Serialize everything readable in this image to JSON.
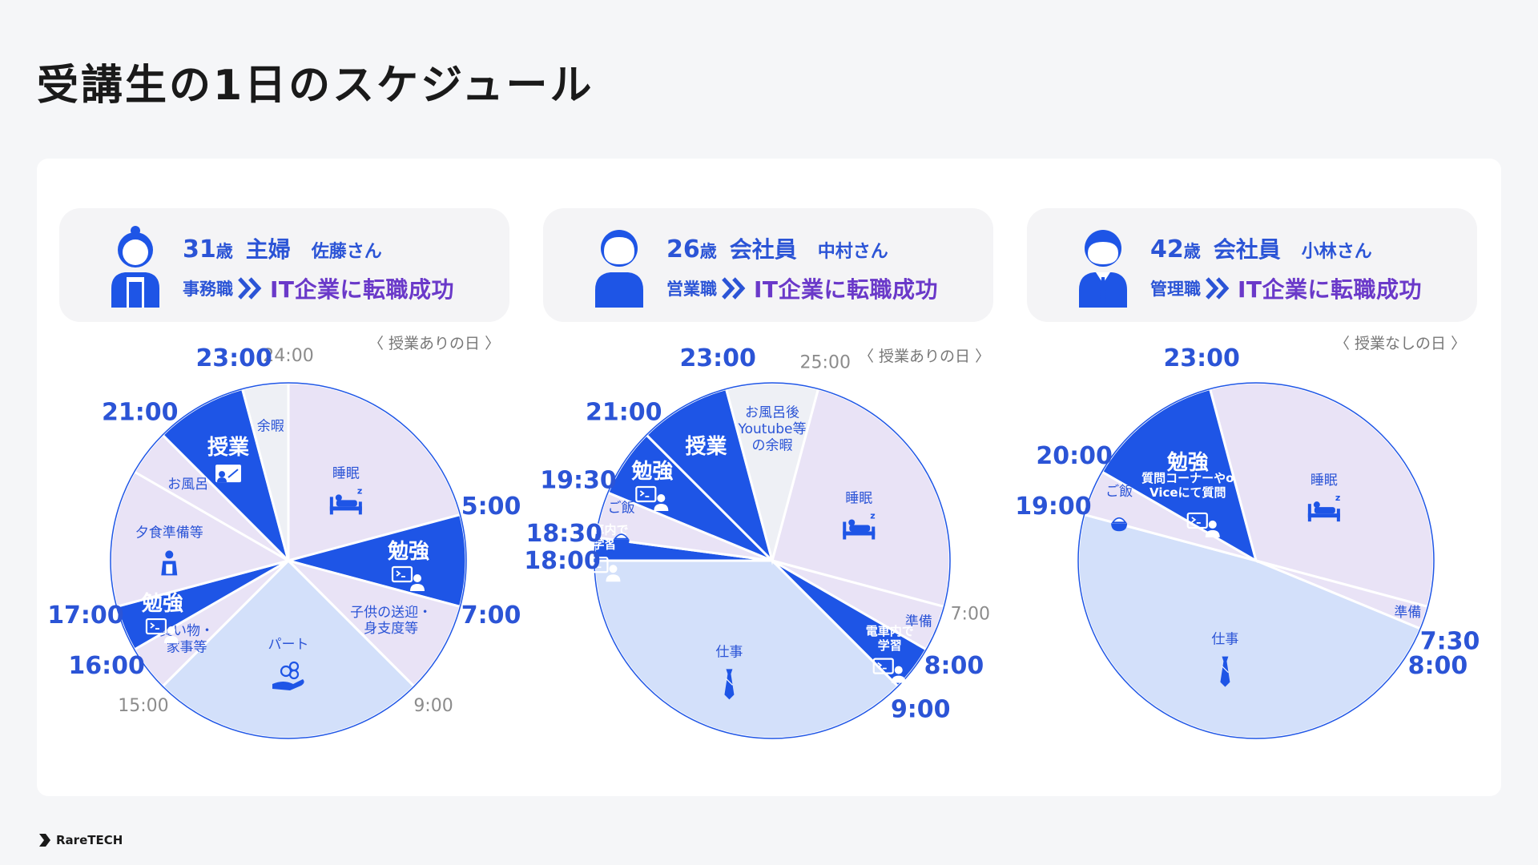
{
  "page": {
    "title": "受講生の1日のスケジュール"
  },
  "footer": {
    "brand": "RareTECH"
  },
  "colors": {
    "blue": "#1e55e6",
    "lavender": "#e9e3f6",
    "lightblue": "#d3e0fa",
    "gray": "#eef0f5",
    "purple": "#6a39c9"
  },
  "profiles": [
    {
      "age": "31",
      "sai": "歳",
      "role": "主婦",
      "name": "佐藤さん",
      "prev_job": "事務職",
      "result": "IT企業に転職成功",
      "day_type": "〈 授業ありの日 〉"
    },
    {
      "age": "26",
      "sai": "歳",
      "role": "会社員",
      "name": "中村さん",
      "prev_job": "営業職",
      "result": "IT企業に転職成功",
      "day_type": "〈 授業ありの日 〉"
    },
    {
      "age": "42",
      "sai": "歳",
      "role": "会社員",
      "name": "小林さん",
      "prev_job": "管理職",
      "result": "IT企業に転職成功",
      "day_type": "〈 授業なしの日 〉"
    }
  ],
  "chart_data": [
    {
      "type": "pie",
      "start_hour": 24,
      "segments": [
        {
          "start": 24,
          "end": 29,
          "label": "睡眠",
          "color": "lavender",
          "icon": "bed-icon"
        },
        {
          "start": 29,
          "end": 31,
          "label": "勉強",
          "color": "blue",
          "icon": "study-icon"
        },
        {
          "start": 31,
          "end": 33,
          "label": "子供の送迎・身支度等",
          "color": "lavender",
          "icon": ""
        },
        {
          "start": 33,
          "end": 39,
          "label": "パート",
          "color": "lightblue",
          "icon": "coin-hand-icon"
        },
        {
          "start": 39,
          "end": 40,
          "label": "買い物・家事等",
          "color": "lavender",
          "icon": ""
        },
        {
          "start": 40,
          "end": 41,
          "label": "勉強",
          "color": "blue",
          "icon": "study-icon"
        },
        {
          "start": 41,
          "end": 44,
          "label": "夕食準備等",
          "color": "lavender",
          "icon": "apron-icon"
        },
        {
          "start": 44,
          "end": 45,
          "label": "お風呂",
          "color": "lavender",
          "icon": ""
        },
        {
          "start": 45,
          "end": 47,
          "label": "授業",
          "color": "blue",
          "icon": "lecture-icon"
        },
        {
          "start": 47,
          "end": 48,
          "label": "余暇",
          "color": "gray",
          "icon": ""
        }
      ],
      "time_labels": [
        {
          "hour": 24,
          "text": "24:00",
          "style": "gray"
        },
        {
          "hour": 29,
          "text": "5:00",
          "style": "blue"
        },
        {
          "hour": 31,
          "text": "7:00",
          "style": "blue"
        },
        {
          "hour": 33,
          "text": "9:00",
          "style": "gray"
        },
        {
          "hour": 39,
          "text": "15:00",
          "style": "gray"
        },
        {
          "hour": 40,
          "text": "16:00",
          "style": "blue"
        },
        {
          "hour": 41,
          "text": "17:00",
          "style": "blue"
        },
        {
          "hour": 45,
          "text": "21:00",
          "style": "blue"
        },
        {
          "hour": 47,
          "text": "23:00",
          "style": "blue"
        }
      ]
    },
    {
      "type": "pie",
      "start_hour": 25,
      "segments": [
        {
          "start": 25,
          "end": 31,
          "label": "睡眠",
          "color": "lavender",
          "icon": "bed-icon"
        },
        {
          "start": 31,
          "end": 32,
          "label": "準備",
          "color": "lavender",
          "icon": ""
        },
        {
          "start": 32,
          "end": 33,
          "label": "電車内で学習",
          "color": "blue",
          "icon": "study-icon"
        },
        {
          "start": 33,
          "end": 42,
          "label": "仕事",
          "color": "lightblue",
          "icon": "tie-icon"
        },
        {
          "start": 42,
          "end": 42.5,
          "label": "電車内で学習",
          "color": "blue",
          "icon": "study-icon"
        },
        {
          "start": 42.5,
          "end": 43.5,
          "label": "ご飯",
          "color": "lavender",
          "icon": "bowl-icon"
        },
        {
          "start": 43.5,
          "end": 45,
          "label": "勉強",
          "color": "blue",
          "icon": "study-icon"
        },
        {
          "start": 45,
          "end": 47,
          "label": "授業",
          "color": "blue",
          "icon": ""
        },
        {
          "start": 47,
          "end": 49,
          "label": "お風呂後Youtube等の余暇",
          "color": "gray",
          "icon": ""
        }
      ],
      "time_labels": [
        {
          "hour": 25,
          "text": "25:00",
          "style": "gray"
        },
        {
          "hour": 31,
          "text": "7:00",
          "style": "gray"
        },
        {
          "hour": 32,
          "text": "8:00",
          "style": "blue"
        },
        {
          "hour": 33,
          "text": "9:00",
          "style": "blue"
        },
        {
          "hour": 42,
          "text": "18:00",
          "style": "blue"
        },
        {
          "hour": 42.5,
          "text": "18:30",
          "style": "blue"
        },
        {
          "hour": 43.5,
          "text": "19:30",
          "style": "blue"
        },
        {
          "hour": 45,
          "text": "21:00",
          "style": "blue"
        },
        {
          "hour": 47,
          "text": "23:00",
          "style": "blue"
        }
      ]
    },
    {
      "type": "pie",
      "start_hour": 23,
      "segments": [
        {
          "start": 23,
          "end": 31,
          "label": "睡眠",
          "color": "lavender",
          "icon": "bed-icon"
        },
        {
          "start": 31,
          "end": 31.5,
          "label": "準備",
          "color": "lavender",
          "icon": ""
        },
        {
          "start": 31.5,
          "end": 43,
          "label": "仕事",
          "color": "lightblue",
          "icon": "tie-icon"
        },
        {
          "start": 43,
          "end": 44,
          "label": "ご飯",
          "color": "lavender",
          "icon": "bowl-icon"
        },
        {
          "start": 44,
          "end": 47,
          "label": "勉強",
          "color": "blue",
          "icon": "study-icon",
          "sublabel": "質問コーナーやoViceにて質問"
        }
      ],
      "time_labels": [
        {
          "hour": 23,
          "text": "23:00",
          "style": "blue"
        },
        {
          "hour": 31.5,
          "text": "7:30",
          "style": "blue"
        },
        {
          "hour": 32,
          "text": "8:00",
          "style": "blue"
        },
        {
          "hour": 43,
          "text": "19:00",
          "style": "blue"
        },
        {
          "hour": 44,
          "text": "20:00",
          "style": "blue"
        }
      ]
    }
  ]
}
